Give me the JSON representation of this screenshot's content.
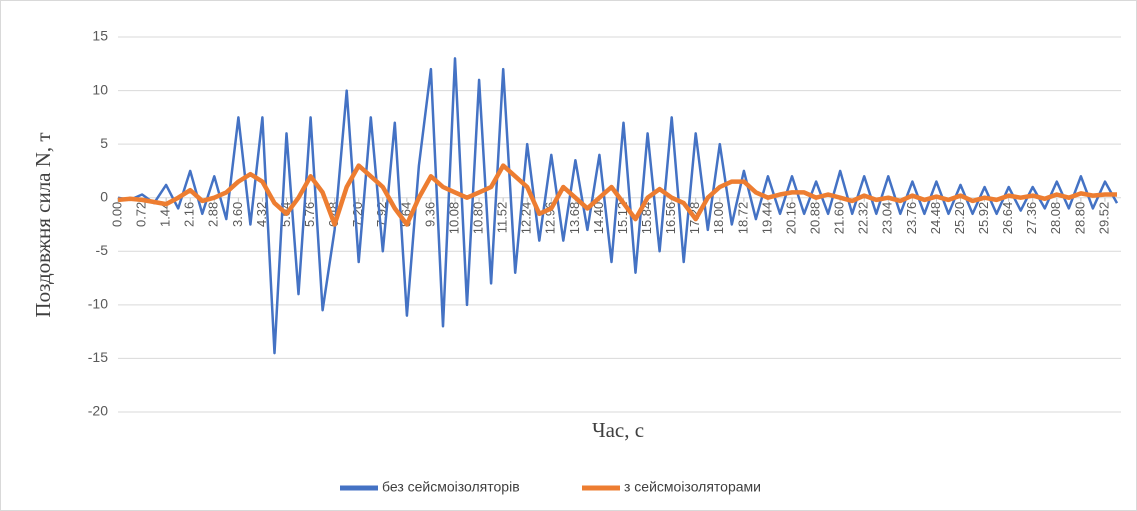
{
  "chart_data": {
    "type": "line",
    "y_label": "Поздовжня сила N, т",
    "x_label": "Час, с",
    "x": [
      0,
      0.36,
      0.72,
      1.08,
      1.44,
      1.8,
      2.16,
      2.52,
      2.88,
      3.24,
      3.6,
      3.96,
      4.32,
      4.68,
      5.04,
      5.4,
      5.76,
      6.12,
      6.48,
      6.84,
      7.2,
      7.56,
      7.92,
      8.28,
      8.64,
      9,
      9.36,
      9.72,
      10.08,
      10.44,
      10.8,
      11.16,
      11.52,
      11.88,
      12.24,
      12.6,
      12.96,
      13.32,
      13.68,
      14.04,
      14.4,
      14.76,
      15.12,
      15.48,
      15.84,
      16.2,
      16.56,
      16.92,
      17.28,
      17.64,
      18,
      18.36,
      18.72,
      19.08,
      19.44,
      19.8,
      20.16,
      20.52,
      20.88,
      21.24,
      21.6,
      21.96,
      22.32,
      22.68,
      23.04,
      23.4,
      23.76,
      24.12,
      24.48,
      24.84,
      25.2,
      25.56,
      25.92,
      26.28,
      26.64,
      27,
      27.36,
      27.72,
      28.08,
      28.44,
      28.8,
      29.16,
      29.52,
      29.88
    ],
    "series": [
      {
        "name": "без сейсмоізоляторів",
        "color": "#4472c4",
        "values": [
          0,
          -0.2,
          0.3,
          -0.5,
          1.2,
          -1,
          2.5,
          -1.5,
          2,
          -2,
          7.5,
          -2.5,
          7.5,
          -14.5,
          6,
          -9,
          7.5,
          -10.5,
          -3,
          10,
          -6,
          7.5,
          -5,
          7,
          -11,
          3,
          12,
          -12,
          13,
          -10,
          11,
          -8,
          12,
          -7,
          5,
          -4,
          4,
          -4,
          3.5,
          -3,
          4,
          -6,
          7,
          -7,
          6,
          -5,
          7.5,
          -6,
          6,
          -3,
          5,
          -2.5,
          2.5,
          -2,
          2,
          -1.5,
          2,
          -1.5,
          1.5,
          -1.5,
          2.5,
          -1.5,
          2,
          -1.5,
          2,
          -1.5,
          1.5,
          -1.5,
          1.5,
          -1.5,
          1.2,
          -1.5,
          1,
          -1.5,
          1,
          -1.2,
          1,
          -1,
          1.5,
          -1,
          2,
          -1,
          1.5,
          -0.5
        ]
      },
      {
        "name": "з сейсмоізоляторами",
        "color": "#ed7d31",
        "values": [
          -0.2,
          -0.1,
          -0.2,
          -0.4,
          -0.6,
          0,
          0.7,
          -0.3,
          0,
          0.5,
          1.5,
          2.2,
          1.5,
          -0.5,
          -1.5,
          0,
          2,
          0.5,
          -2.5,
          1,
          3,
          2,
          1,
          -1,
          -2.5,
          0,
          2,
          1,
          0.5,
          0,
          0.5,
          1,
          3,
          2,
          1,
          -1.5,
          -1,
          1,
          0,
          -1,
          0,
          1,
          -0.5,
          -2,
          0,
          0.8,
          0,
          -0.5,
          -2,
          0,
          1,
          1.5,
          1.5,
          0.5,
          0,
          0.3,
          0.5,
          0.5,
          0,
          0.3,
          0,
          -0.3,
          0.2,
          -0.2,
          0,
          -0.3,
          0.2,
          -0.2,
          0.1,
          -0.2,
          0.2,
          -0.3,
          0,
          -0.2,
          0.2,
          0,
          0.2,
          -0.1,
          0.3,
          0,
          0.4,
          0.2,
          0.3,
          0.3
        ]
      }
    ],
    "xlim": [
      0,
      30
    ],
    "xticks": [
      {
        "value": 0,
        "label": "0.00"
      },
      0.72,
      1.44,
      2.16,
      2.88,
      {
        "value": 3.6,
        "label": "3.60"
      },
      4.32,
      5.04,
      5.76,
      6.48,
      {
        "value": 7.2,
        "label": "7.20"
      },
      7.92,
      8.64,
      9.36,
      10.08,
      {
        "value": 10.8,
        "label": "10.80"
      },
      11.52,
      12.24,
      12.96,
      13.68,
      {
        "value": 14.4,
        "label": "14.40"
      },
      15.12,
      15.84,
      16.56,
      17.28,
      {
        "value": 18,
        "label": "18.00"
      },
      18.72,
      19.44,
      20.16,
      20.88,
      {
        "value": 21.6,
        "label": "21.60"
      },
      22.32,
      23.04,
      23.76,
      24.48,
      {
        "value": 25.2,
        "label": "25.20"
      },
      25.92,
      26.64,
      27.36,
      28.08,
      {
        "value": 28.8,
        "label": "28.80"
      },
      29.52
    ],
    "ylim": [
      -20,
      15
    ],
    "yticks": [
      -20,
      -15,
      -10,
      -5,
      0,
      5,
      10,
      15
    ],
    "grid": true,
    "legend": "bottom"
  }
}
